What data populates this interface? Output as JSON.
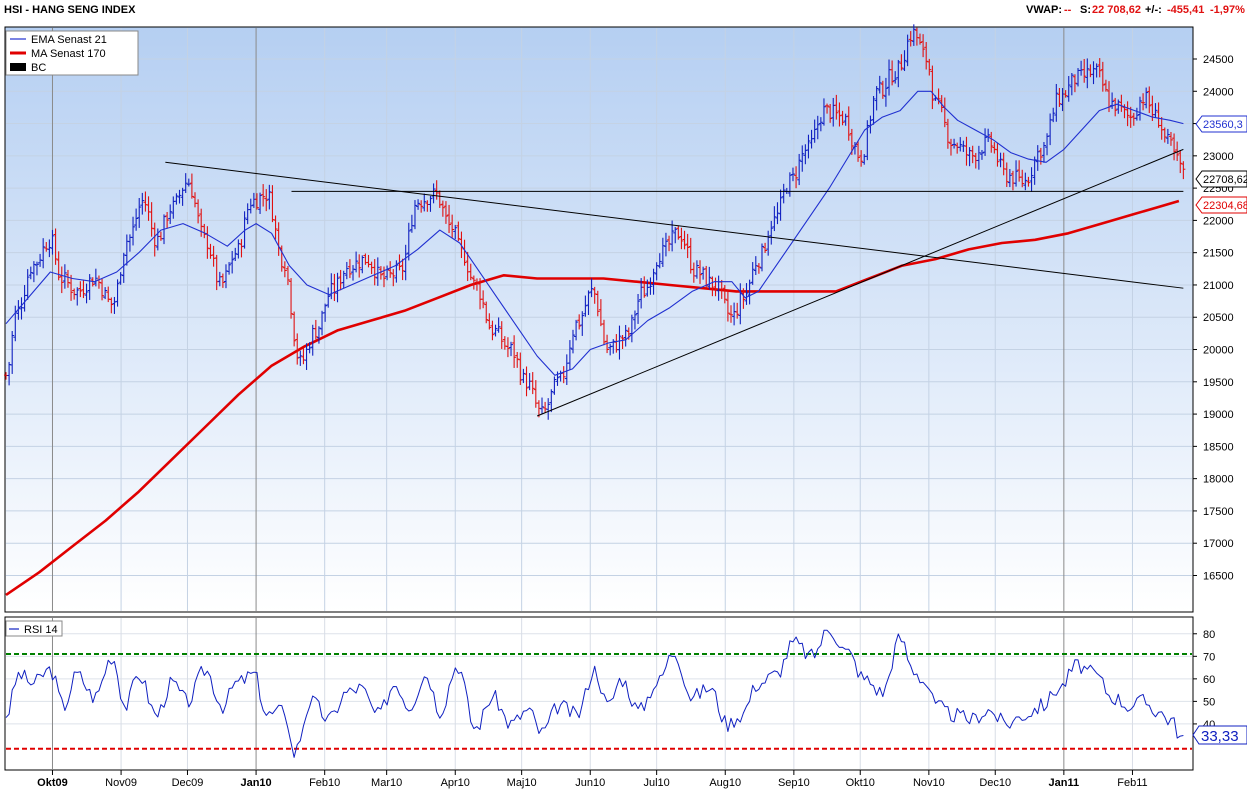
{
  "header": {
    "title": "HSI - HANG SENG INDEX",
    "vwap_label": "VWAP:",
    "vwap_value": "--",
    "s_label": "S:",
    "s_value": "22 708,62",
    "change_label": "+/-:",
    "change_value": "-455,41",
    "change_pct": "-1,97%"
  },
  "colors": {
    "price_up": "#1020c0",
    "price_down": "#e01010",
    "ema": "#2030d0",
    "ma": "#e00000",
    "rsi": "#1020c0",
    "rsi_upper": "#008000",
    "rsi_lower": "#e00000",
    "bg_top": "#b5cff2",
    "bg_bottom": "#ffffff"
  },
  "legend": [
    {
      "label": "EMA  Senast 21",
      "color": "#2030d0",
      "style": "line-thin"
    },
    {
      "label": "MA  Senast 170",
      "color": "#e00000",
      "style": "line-thick"
    },
    {
      "label": "BC",
      "color": "#000000",
      "style": "box"
    }
  ],
  "rsi_legend": {
    "label": "RSI  14",
    "color": "#1020c0"
  },
  "value_tags": {
    "ema": "23560,3",
    "close": "22708,62",
    "ma": "22304,68",
    "rsi": "33,33"
  },
  "chart_data": [
    {
      "type": "line",
      "title": "HSI - HANG SENG INDEX",
      "y_axis_ticks": [
        16500,
        17000,
        17500,
        18000,
        18500,
        19000,
        19500,
        20000,
        20500,
        21000,
        21500,
        22000,
        22500,
        23000,
        23500,
        24000,
        24500
      ],
      "y_tick_labels": [
        "16500",
        "17000",
        "17500",
        "18000",
        "18500",
        "19000",
        "19500",
        "20000",
        "20500",
        "21000",
        "21500",
        "22000",
        "22500",
        "23000",
        "23500",
        "24000",
        "24500"
      ],
      "ylim": [
        15950,
        24980
      ],
      "x_tick_labels": [
        {
          "label": "Okt09",
          "bold": true
        },
        {
          "label": "Nov09",
          "bold": false
        },
        {
          "label": "Dec09",
          "bold": false
        },
        {
          "label": "Jan10",
          "bold": true
        },
        {
          "label": "Feb10",
          "bold": false
        },
        {
          "label": "Mar10",
          "bold": false
        },
        {
          "label": "Apr10",
          "bold": false
        },
        {
          "label": "Maj10",
          "bold": false
        },
        {
          "label": "Jun10",
          "bold": false
        },
        {
          "label": "Jul10",
          "bold": false
        },
        {
          "label": "Aug10",
          "bold": false
        },
        {
          "label": "Sep10",
          "bold": false
        },
        {
          "label": "Okt10",
          "bold": false
        },
        {
          "label": "Nov10",
          "bold": false
        },
        {
          "label": "Dec10",
          "bold": false
        },
        {
          "label": "Jan11",
          "bold": true
        },
        {
          "label": "Feb11",
          "bold": false
        }
      ],
      "x_tick_days": [
        21,
        52,
        82,
        113,
        144,
        172,
        203,
        233,
        264,
        294,
        325,
        356,
        386,
        417,
        447,
        478,
        509
      ],
      "x_range_days": [
        0,
        535
      ],
      "grid": true,
      "price_series": {
        "name": "HSI",
        "anchors_days": [
          0,
          5,
          12,
          20,
          25,
          32,
          40,
          48,
          55,
          62,
          68,
          75,
          82,
          90,
          97,
          104,
          111,
          118,
          125,
          133,
          140,
          147,
          155,
          163,
          170,
          178,
          186,
          194,
          201,
          206,
          212,
          220,
          228,
          235,
          242,
          250,
          258,
          265,
          272,
          280,
          288,
          296,
          304,
          312,
          320,
          328,
          333,
          340,
          347,
          354,
          362,
          370,
          378,
          386,
          394,
          402,
          410,
          416,
          420,
          428,
          436,
          444,
          452,
          460,
          468,
          476,
          484,
          492,
          500,
          508,
          514,
          520,
          525,
          530,
          532
        ],
        "anchors_values": [
          19600,
          20600,
          21300,
          21700,
          21100,
          20900,
          21100,
          20700,
          21700,
          22300,
          21700,
          22200,
          22600,
          21700,
          21000,
          21500,
          22300,
          22400,
          21400,
          19800,
          20300,
          20900,
          21300,
          21400,
          21100,
          21200,
          22300,
          22400,
          21900,
          21500,
          21000,
          20300,
          20000,
          19500,
          19000,
          19500,
          20400,
          20900,
          20000,
          20200,
          20900,
          21500,
          21800,
          21200,
          21000,
          20500,
          20800,
          21400,
          22000,
          22600,
          23100,
          23700,
          23600,
          23000,
          24000,
          24300,
          24900,
          24500,
          23800,
          23200,
          23000,
          23200,
          22700,
          22600,
          23100,
          23900,
          24200,
          24300,
          23800,
          23600,
          23900,
          23600,
          23200,
          22900,
          22700
        ]
      },
      "series": [
        {
          "name": "EMA  Senast 21",
          "x_days": [
            0,
            10,
            20,
            30,
            40,
            50,
            60,
            70,
            80,
            90,
            100,
            108,
            113,
            120,
            128,
            136,
            146,
            156,
            166,
            176,
            186,
            196,
            205,
            213,
            222,
            232,
            240,
            248,
            256,
            264,
            272,
            280,
            290,
            300,
            310,
            320,
            328,
            334,
            340,
            348,
            356,
            364,
            372,
            380,
            388,
            396,
            404,
            412,
            418,
            424,
            430,
            438,
            446,
            454,
            462,
            470,
            478,
            486,
            494,
            502,
            510,
            518,
            526,
            532
          ],
          "values": [
            20400,
            20800,
            21200,
            21100,
            21050,
            21200,
            21500,
            21850,
            21950,
            21800,
            21600,
            21850,
            21950,
            21800,
            21300,
            21000,
            20850,
            21000,
            21150,
            21300,
            21550,
            21850,
            21650,
            21250,
            20800,
            20300,
            19900,
            19600,
            19700,
            20000,
            20100,
            20150,
            20450,
            20650,
            20900,
            21050,
            21050,
            20800,
            20900,
            21300,
            21700,
            22100,
            22500,
            22950,
            23400,
            23600,
            23700,
            24000,
            24000,
            23750,
            23550,
            23400,
            23250,
            23050,
            22950,
            22900,
            23100,
            23400,
            23700,
            23800,
            23700,
            23600,
            23550,
            23500
          ]
        },
        {
          "name": "MA  Senast 170",
          "x_days": [
            0,
            15,
            30,
            45,
            60,
            75,
            90,
            105,
            120,
            135,
            150,
            165,
            180,
            195,
            210,
            225,
            240,
            255,
            270,
            285,
            300,
            315,
            330,
            345,
            360,
            375,
            390,
            405,
            420,
            435,
            450,
            465,
            480,
            495,
            510,
            520,
            530
          ],
          "values": [
            16200,
            16550,
            16950,
            17350,
            17800,
            18300,
            18800,
            19300,
            19750,
            20050,
            20300,
            20450,
            20600,
            20800,
            21000,
            21150,
            21100,
            21100,
            21100,
            21050,
            21000,
            20950,
            20900,
            20900,
            20900,
            20900,
            21100,
            21300,
            21400,
            21550,
            21650,
            21700,
            21800,
            21950,
            22100,
            22200,
            22300
          ]
        }
      ],
      "trendlines": [
        {
          "from": [
            72,
            22900
          ],
          "to": [
            532,
            20950
          ]
        },
        {
          "from": [
            129,
            22450
          ],
          "to": [
            532,
            22450
          ]
        },
        {
          "from": [
            240,
            18970
          ],
          "to": [
            532,
            23100
          ]
        }
      ]
    },
    {
      "type": "line",
      "title": "RSI  14",
      "y_axis_ticks": [
        40,
        50,
        60,
        70,
        80
      ],
      "y_tick_labels": [
        "40",
        "50",
        "60",
        "70",
        "80"
      ],
      "ylim": [
        20,
        87
      ],
      "reference_lines": [
        {
          "value": 71,
          "color": "#008000"
        },
        {
          "value": 29,
          "color": "#e00000"
        }
      ],
      "series": [
        {
          "name": "RSI  14",
          "anchors_days": [
            0,
            6,
            12,
            20,
            26,
            32,
            40,
            48,
            54,
            60,
            68,
            75,
            82,
            90,
            98,
            104,
            112,
            118,
            126,
            130,
            138,
            146,
            154,
            160,
            168,
            176,
            182,
            190,
            196,
            204,
            212,
            220,
            228,
            236,
            242,
            250,
            258,
            266,
            272,
            278,
            286,
            294,
            302,
            310,
            318,
            326,
            332,
            340,
            348,
            356,
            364,
            372,
            380,
            388,
            396,
            404,
            410,
            416,
            420,
            428,
            436,
            444,
            452,
            460,
            468,
            476,
            484,
            492,
            500,
            508,
            514,
            520,
            526,
            532
          ],
          "values": [
            44,
            62,
            58,
            64,
            48,
            62,
            52,
            70,
            48,
            62,
            44,
            58,
            50,
            64,
            48,
            58,
            62,
            44,
            46,
            27,
            50,
            42,
            54,
            56,
            44,
            58,
            48,
            62,
            46,
            66,
            38,
            52,
            40,
            46,
            36,
            48,
            44,
            64,
            48,
            60,
            46,
            58,
            72,
            52,
            56,
            40,
            44,
            58,
            62,
            76,
            70,
            82,
            72,
            60,
            54,
            78,
            64,
            58,
            48,
            44,
            42,
            46,
            40,
            44,
            48,
            56,
            66,
            62,
            52,
            48,
            50,
            46,
            42,
            33
          ]
        }
      ]
    }
  ]
}
